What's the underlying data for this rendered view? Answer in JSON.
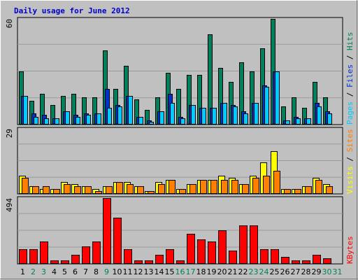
{
  "chart_data": [
    {
      "type": "bar",
      "title": "Daily usage for June 2012",
      "ymax_label": "60",
      "right_labels": [
        "Pages",
        "Files",
        "Hits"
      ],
      "colors": {
        "Pages": "#00ccff",
        "Files": "#0033cc",
        "Hits": "#00805c"
      },
      "categories": [
        "1",
        "2",
        "3",
        "4",
        "5",
        "6",
        "7",
        "8",
        "9",
        "10",
        "11",
        "12",
        "13",
        "14",
        "15",
        "16",
        "17",
        "18",
        "19",
        "20",
        "21",
        "22",
        "23",
        "24",
        "25",
        "26",
        "27",
        "28",
        "29",
        "30",
        "31"
      ],
      "weekend_days": [
        2,
        3,
        9,
        16,
        17,
        23,
        24,
        30,
        31
      ],
      "ylim": [
        0,
        60
      ],
      "series": [
        {
          "name": "Hits",
          "values": [
            30,
            13,
            17,
            11,
            16,
            17,
            15,
            15,
            42,
            20,
            33,
            14,
            8,
            15,
            29,
            20,
            28,
            28,
            51,
            32,
            24,
            35,
            30,
            43,
            60,
            10,
            15,
            9,
            24,
            15,
            0
          ]
        },
        {
          "name": "Files",
          "values": [
            16,
            6,
            5,
            3,
            7,
            5,
            6,
            6,
            20,
            11,
            16,
            4,
            2,
            7,
            17,
            4,
            11,
            9,
            9,
            12,
            11,
            7,
            12,
            22,
            30,
            2,
            4,
            3,
            12,
            7,
            0
          ]
        },
        {
          "name": "Pages",
          "values": [
            16,
            4,
            3,
            3,
            7,
            4,
            5,
            6,
            9,
            10,
            16,
            4,
            1,
            7,
            12,
            3,
            11,
            9,
            9,
            12,
            10,
            6,
            12,
            21,
            30,
            2,
            3,
            3,
            10,
            6,
            0
          ]
        }
      ]
    },
    {
      "type": "bar",
      "ymax_label": "29",
      "right_labels": [
        "Visits",
        "Sites"
      ],
      "colors": {
        "Visits": "#ffff00",
        "Sites": "#ff8000"
      },
      "categories": [
        "1",
        "2",
        "3",
        "4",
        "5",
        "6",
        "7",
        "8",
        "9",
        "10",
        "11",
        "12",
        "13",
        "14",
        "15",
        "16",
        "17",
        "18",
        "19",
        "20",
        "21",
        "22",
        "23",
        "24",
        "25",
        "26",
        "27",
        "28",
        "29",
        "30",
        "31"
      ],
      "ylim": [
        0,
        29
      ],
      "series": [
        {
          "name": "Visits",
          "values": [
            8,
            3,
            2,
            2,
            5,
            4,
            3,
            2,
            3,
            5,
            5,
            3,
            1,
            5,
            6,
            2,
            4,
            6,
            6,
            8,
            7,
            4,
            8,
            14,
            19,
            2,
            2,
            3,
            7,
            4,
            0
          ]
        },
        {
          "name": "Sites",
          "values": [
            7,
            3,
            3,
            2,
            4,
            3,
            3,
            1,
            3,
            5,
            4,
            3,
            1,
            4,
            6,
            2,
            4,
            6,
            6,
            6,
            6,
            4,
            7,
            8,
            10,
            2,
            2,
            3,
            6,
            3,
            0
          ]
        }
      ]
    },
    {
      "type": "bar",
      "ymax_label": "494",
      "right_labels": [
        "KBytes"
      ],
      "colors": {
        "KBytes": "#ff0000"
      },
      "categories": [
        "1",
        "2",
        "3",
        "4",
        "5",
        "6",
        "7",
        "8",
        "9",
        "10",
        "11",
        "12",
        "13",
        "14",
        "15",
        "16",
        "17",
        "18",
        "19",
        "20",
        "21",
        "22",
        "23",
        "24",
        "25",
        "26",
        "27",
        "28",
        "29",
        "30",
        "31"
      ],
      "ylim": [
        0,
        494
      ],
      "series": [
        {
          "name": "KBytes",
          "values": [
            105,
            105,
            163,
            21,
            21,
            64,
            129,
            163,
            494,
            344,
            105,
            21,
            21,
            64,
            105,
            21,
            222,
            183,
            163,
            247,
            94,
            287,
            287,
            105,
            105,
            50,
            21,
            21,
            64,
            35,
            0
          ]
        }
      ]
    }
  ]
}
